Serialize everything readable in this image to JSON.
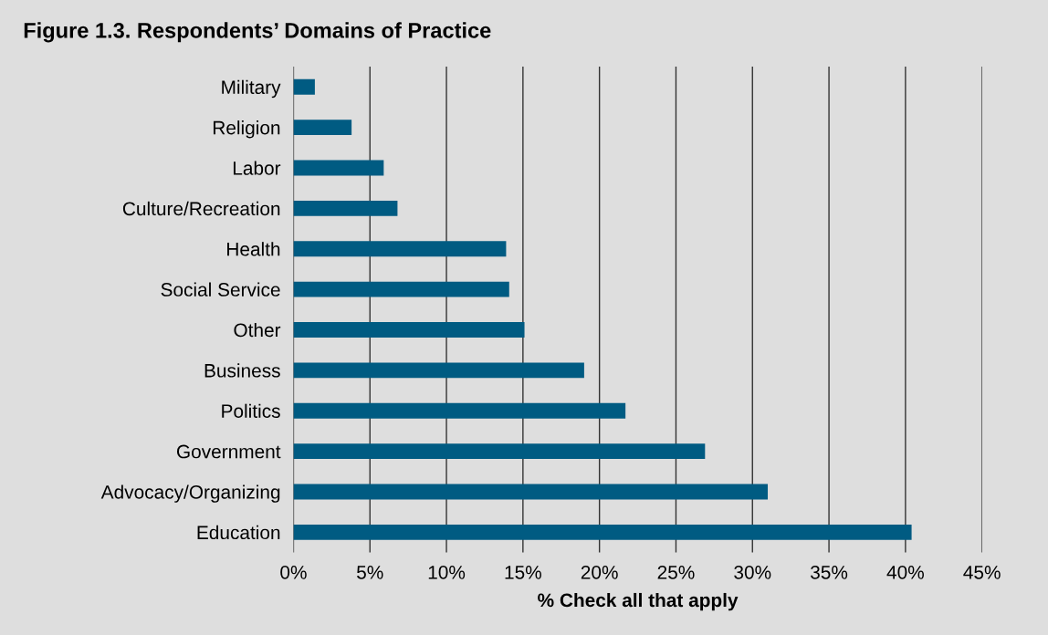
{
  "chart_data": {
    "type": "bar",
    "orientation": "horizontal",
    "title": "Figure 1.3. Respondents’ Domains of Practice",
    "xlabel": "% Check all that apply",
    "categories": [
      "Military",
      "Religion",
      "Labor",
      "Culture/Recreation",
      "Health",
      "Social Service",
      "Other",
      "Business",
      "Politics",
      "Government",
      "Advocacy/Organizing",
      "Education"
    ],
    "values": [
      1.4,
      3.8,
      5.9,
      6.8,
      13.9,
      14.1,
      15.1,
      19.0,
      21.7,
      26.9,
      31.0,
      40.4
    ],
    "color": "#005b82",
    "xlim": [
      0,
      45
    ],
    "xticks": [
      {
        "value": 0,
        "label": "0%"
      },
      {
        "value": 5,
        "label": "5%"
      },
      {
        "value": 10,
        "label": "10%"
      },
      {
        "value": 15,
        "label": "15%"
      },
      {
        "value": 20,
        "label": "20%"
      },
      {
        "value": 25,
        "label": "25%"
      },
      {
        "value": 30,
        "label": "30%"
      },
      {
        "value": 35,
        "label": "35%"
      },
      {
        "value": 40,
        "label": "40%"
      },
      {
        "value": 45,
        "label": "45%"
      }
    ],
    "grid": "x",
    "legend": false
  }
}
